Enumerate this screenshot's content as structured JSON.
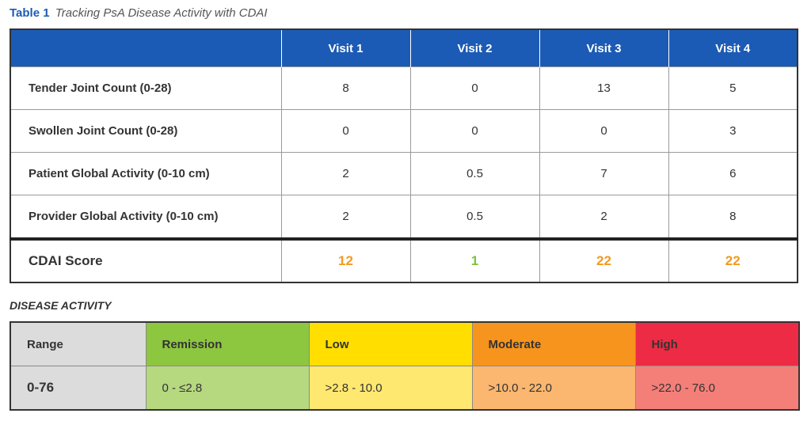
{
  "caption": {
    "label": "Table 1",
    "title": "Tracking PsA Disease Activity with CDAI"
  },
  "tracking_table": {
    "columns": [
      "",
      "Visit 1",
      "Visit 2",
      "Visit 3",
      "Visit 4"
    ],
    "rows": [
      {
        "label": "Tender Joint Count (0-28)",
        "values": [
          "8",
          "0",
          "13",
          "5"
        ]
      },
      {
        "label": "Swollen Joint Count (0-28)",
        "values": [
          "0",
          "0",
          "0",
          "3"
        ]
      },
      {
        "label": "Patient Global Activity (0-10 cm)",
        "values": [
          "2",
          "0.5",
          "7",
          "6"
        ]
      },
      {
        "label": "Provider Global Activity (0-10 cm)",
        "values": [
          "2",
          "0.5",
          "2",
          "8"
        ]
      }
    ],
    "score": {
      "label": "CDAI Score",
      "values": [
        "12",
        "1",
        "22",
        "22"
      ],
      "colors": [
        "#f29a1f",
        "#7ec13f",
        "#f29a1f",
        "#f29a1f"
      ]
    }
  },
  "disease_activity": {
    "heading": "DISEASE ACTIVITY",
    "headers": [
      "Range",
      "Remission",
      "Low",
      "Moderate",
      "High"
    ],
    "values": [
      "0-76",
      "0 - ≤2.8",
      ">2.8 - 10.0",
      ">10.0 - 22.0",
      ">22.0 - 76.0"
    ],
    "header_colors": [
      "#dcdcdc",
      "#8dc63f",
      "#ffde00",
      "#f7941d",
      "#ed2b44"
    ],
    "value_colors": [
      "#dcdcdc",
      "#b6d87f",
      "#ffe870",
      "#fbb66f",
      "#f47f78"
    ]
  }
}
